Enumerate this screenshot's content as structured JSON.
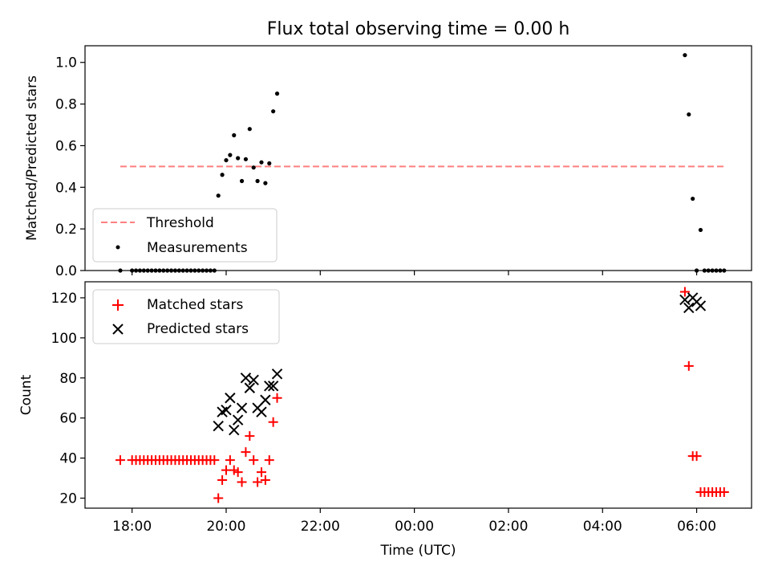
{
  "chart_data": [
    {
      "type": "scatter",
      "title": "Flux total observing time = 0.00 h",
      "ylabel": "Matched/Predicted stars",
      "ylim": [
        0,
        1.08
      ],
      "yticks": [
        "0.0",
        "0.2",
        "0.4",
        "0.6",
        "0.8",
        "1.0"
      ],
      "ytick_values": [
        0,
        0.2,
        0.4,
        0.6,
        0.8,
        1.0
      ],
      "threshold": {
        "name": "Threshold",
        "value": 0.5,
        "from": "17:45",
        "to": "06:35",
        "color": "#ff7f7f"
      },
      "measurements": {
        "name": "Measurements",
        "color": "#000000",
        "points": [
          [
            "17:45",
            0.0
          ],
          [
            "18:00",
            0.0
          ],
          [
            "18:05",
            0.0
          ],
          [
            "18:10",
            0.0
          ],
          [
            "18:15",
            0.0
          ],
          [
            "18:20",
            0.0
          ],
          [
            "18:25",
            0.0
          ],
          [
            "18:30",
            0.0
          ],
          [
            "18:35",
            0.0
          ],
          [
            "18:40",
            0.0
          ],
          [
            "18:45",
            0.0
          ],
          [
            "18:50",
            0.0
          ],
          [
            "18:55",
            0.0
          ],
          [
            "19:00",
            0.0
          ],
          [
            "19:05",
            0.0
          ],
          [
            "19:10",
            0.0
          ],
          [
            "19:15",
            0.0
          ],
          [
            "19:20",
            0.0
          ],
          [
            "19:25",
            0.0
          ],
          [
            "19:30",
            0.0
          ],
          [
            "19:35",
            0.0
          ],
          [
            "19:40",
            0.0
          ],
          [
            "19:45",
            0.0
          ],
          [
            "19:50",
            0.36
          ],
          [
            "19:55",
            0.46
          ],
          [
            "20:00",
            0.53
          ],
          [
            "20:05",
            0.555
          ],
          [
            "20:10",
            0.65
          ],
          [
            "20:15",
            0.54
          ],
          [
            "20:20",
            0.43
          ],
          [
            "20:25",
            0.535
          ],
          [
            "20:30",
            0.68
          ],
          [
            "20:35",
            0.495
          ],
          [
            "20:40",
            0.43
          ],
          [
            "20:45",
            0.52
          ],
          [
            "20:50",
            0.42
          ],
          [
            "20:55",
            0.515
          ],
          [
            "21:00",
            0.765
          ],
          [
            "21:05",
            0.85
          ],
          [
            "05:45",
            1.035
          ],
          [
            "05:50",
            0.75
          ],
          [
            "05:55",
            0.345
          ],
          [
            "06:00",
            0.0
          ],
          [
            "06:05",
            0.195
          ],
          [
            "06:10",
            0.0
          ],
          [
            "06:15",
            0.0
          ],
          [
            "06:20",
            0.0
          ],
          [
            "06:25",
            0.0
          ],
          [
            "06:30",
            0.0
          ],
          [
            "06:35",
            0.0
          ]
        ]
      },
      "legend": {
        "placement": "lower left",
        "entries": [
          "Threshold",
          "Measurements"
        ]
      }
    },
    {
      "type": "scatter",
      "xlabel": "Time (UTC)",
      "ylabel": "Count",
      "ylim": [
        15,
        128
      ],
      "yticks": [
        "20",
        "40",
        "60",
        "80",
        "100",
        "120"
      ],
      "ytick_values": [
        20,
        40,
        60,
        80,
        100,
        120
      ],
      "xticks": [
        "18:00",
        "20:00",
        "22:00",
        "00:00",
        "02:00",
        "04:00",
        "06:00"
      ],
      "xlim": [
        "17:00",
        "07:10"
      ],
      "series": [
        {
          "name": "Matched stars",
          "marker": "plus",
          "color": "#ff0000",
          "points": [
            [
              "17:45",
              39
            ],
            [
              "18:00",
              39
            ],
            [
              "18:05",
              39
            ],
            [
              "18:10",
              39
            ],
            [
              "18:15",
              39
            ],
            [
              "18:20",
              39
            ],
            [
              "18:25",
              39
            ],
            [
              "18:30",
              39
            ],
            [
              "18:35",
              39
            ],
            [
              "18:40",
              39
            ],
            [
              "18:45",
              39
            ],
            [
              "18:50",
              39
            ],
            [
              "18:55",
              39
            ],
            [
              "19:00",
              39
            ],
            [
              "19:05",
              39
            ],
            [
              "19:10",
              39
            ],
            [
              "19:15",
              39
            ],
            [
              "19:20",
              39
            ],
            [
              "19:25",
              39
            ],
            [
              "19:30",
              39
            ],
            [
              "19:35",
              39
            ],
            [
              "19:40",
              39
            ],
            [
              "19:45",
              39
            ],
            [
              "19:50",
              20
            ],
            [
              "19:55",
              29
            ],
            [
              "20:00",
              34
            ],
            [
              "20:05",
              39
            ],
            [
              "20:10",
              34
            ],
            [
              "20:15",
              33
            ],
            [
              "20:20",
              28
            ],
            [
              "20:25",
              43
            ],
            [
              "20:30",
              51
            ],
            [
              "20:35",
              39
            ],
            [
              "20:40",
              28
            ],
            [
              "20:45",
              33
            ],
            [
              "20:50",
              29
            ],
            [
              "20:55",
              39
            ],
            [
              "21:00",
              58
            ],
            [
              "21:05",
              70
            ],
            [
              "05:45",
              123
            ],
            [
              "05:50",
              86
            ],
            [
              "05:55",
              41
            ],
            [
              "06:00",
              41
            ],
            [
              "06:05",
              23
            ],
            [
              "06:10",
              23
            ],
            [
              "06:15",
              23
            ],
            [
              "06:20",
              23
            ],
            [
              "06:25",
              23
            ],
            [
              "06:30",
              23
            ],
            [
              "06:35",
              23
            ]
          ]
        },
        {
          "name": "Predicted stars",
          "marker": "x",
          "color": "#000000",
          "points": [
            [
              "19:50",
              56
            ],
            [
              "19:55",
              63
            ],
            [
              "20:00",
              64
            ],
            [
              "20:05",
              70
            ],
            [
              "20:10",
              54
            ],
            [
              "20:15",
              59
            ],
            [
              "20:20",
              65
            ],
            [
              "20:25",
              80
            ],
            [
              "20:30",
              75
            ],
            [
              "20:35",
              79
            ],
            [
              "20:40",
              65
            ],
            [
              "20:45",
              63
            ],
            [
              "20:50",
              69
            ],
            [
              "20:55",
              76
            ],
            [
              "21:00",
              76
            ],
            [
              "21:05",
              82
            ],
            [
              "05:45",
              119
            ],
            [
              "05:50",
              115
            ],
            [
              "05:55",
              120
            ],
            [
              "06:00",
              118
            ],
            [
              "06:05",
              116
            ]
          ]
        }
      ],
      "legend": {
        "placement": "upper left",
        "entries": [
          "Matched stars",
          "Predicted stars"
        ]
      }
    }
  ]
}
